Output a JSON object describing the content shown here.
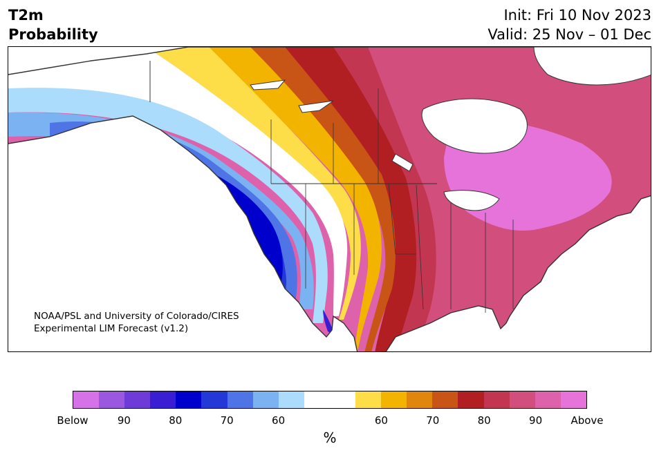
{
  "title": {
    "line1": "T2m",
    "line2": "Probability"
  },
  "dates": {
    "init": "Init: Fri 10 Nov 2023",
    "valid": "Valid: 25 Nov – 01 Dec"
  },
  "credit": {
    "line1": "NOAA/PSL and University of Colorado/CIRES",
    "line2": "Experimental LIM Forecast (v1.2)"
  },
  "colorbar": {
    "unit": "%",
    "colors": [
      "#d672e8",
      "#9a58e0",
      "#6e3bd9",
      "#3a1ed4",
      "#0000cc",
      "#2438d8",
      "#4f74e6",
      "#7ab2f2",
      "#acdcfb",
      "#ffffff",
      "#ffffff",
      "#fddd48",
      "#f3b400",
      "#e0860c",
      "#c85516",
      "#b21f22",
      "#c33652",
      "#d24e7c",
      "#de62ab",
      "#e673da"
    ],
    "ticks": [
      "Below",
      "90",
      "80",
      "70",
      "60",
      "60",
      "70",
      "80",
      "90",
      "Above"
    ]
  }
}
